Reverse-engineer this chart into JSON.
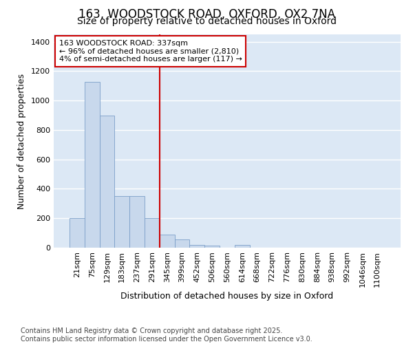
{
  "title_line1": "163, WOODSTOCK ROAD, OXFORD, OX2 7NA",
  "title_line2": "Size of property relative to detached houses in Oxford",
  "xlabel": "Distribution of detached houses by size in Oxford",
  "ylabel": "Number of detached properties",
  "categories": [
    "21sqm",
    "75sqm",
    "129sqm",
    "183sqm",
    "237sqm",
    "291sqm",
    "345sqm",
    "399sqm",
    "452sqm",
    "506sqm",
    "560sqm",
    "614sqm",
    "668sqm",
    "722sqm",
    "776sqm",
    "830sqm",
    "884sqm",
    "938sqm",
    "992sqm",
    "1046sqm",
    "1100sqm"
  ],
  "values": [
    200,
    1125,
    900,
    350,
    350,
    200,
    90,
    55,
    20,
    15,
    0,
    20,
    0,
    0,
    0,
    0,
    0,
    0,
    0,
    0,
    0
  ],
  "bar_color": "#c8d8ec",
  "bar_edge_color": "#7a9ec8",
  "vline_x_index": 6,
  "vline_color": "#cc0000",
  "annotation_text": "163 WOODSTOCK ROAD: 337sqm\n← 96% of detached houses are smaller (2,810)\n4% of semi-detached houses are larger (117) →",
  "annotation_box_facecolor": "#ffffff",
  "annotation_box_edgecolor": "#cc0000",
  "ylim": [
    0,
    1450
  ],
  "yticks": [
    0,
    200,
    400,
    600,
    800,
    1000,
    1200,
    1400
  ],
  "figure_bg": "#ffffff",
  "axes_bg": "#dce8f5",
  "grid_color": "#ffffff",
  "footer_line1": "Contains HM Land Registry data © Crown copyright and database right 2025.",
  "footer_line2": "Contains public sector information licensed under the Open Government Licence v3.0.",
  "title_fontsize": 12,
  "subtitle_fontsize": 10,
  "tick_fontsize": 8,
  "label_fontsize": 9,
  "footer_fontsize": 7
}
